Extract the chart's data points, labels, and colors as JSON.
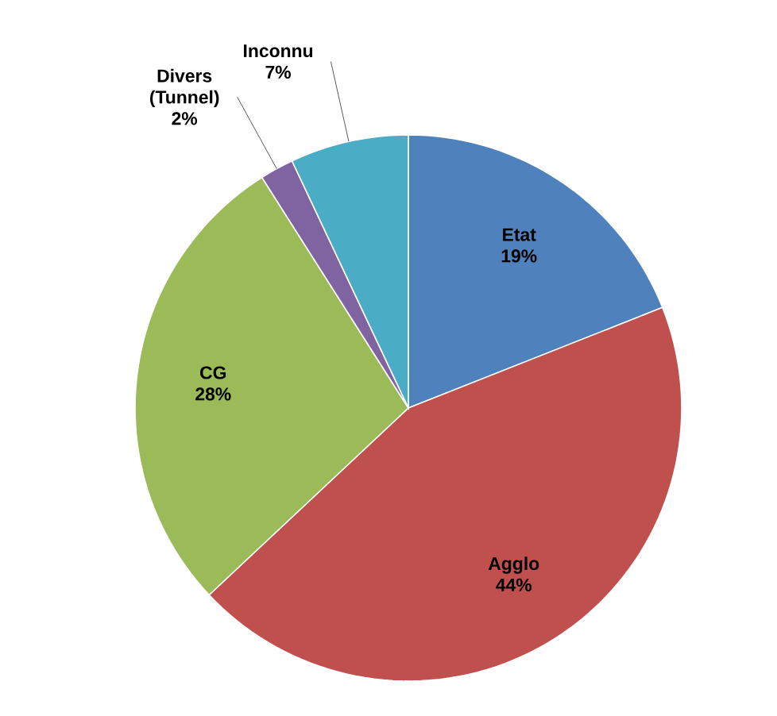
{
  "chart_data": {
    "type": "pie",
    "categories": [
      "Etat",
      "Agglo",
      "CG",
      "Divers (Tunnel)",
      "Inconnu"
    ],
    "values": [
      19,
      44,
      28,
      2,
      7
    ],
    "value_labels": [
      "19%",
      "44%",
      "28%",
      "2%",
      "7%"
    ],
    "colors": [
      "#4f81bd",
      "#c0504d",
      "#9bbb59",
      "#8064a2",
      "#4bacc6"
    ]
  }
}
